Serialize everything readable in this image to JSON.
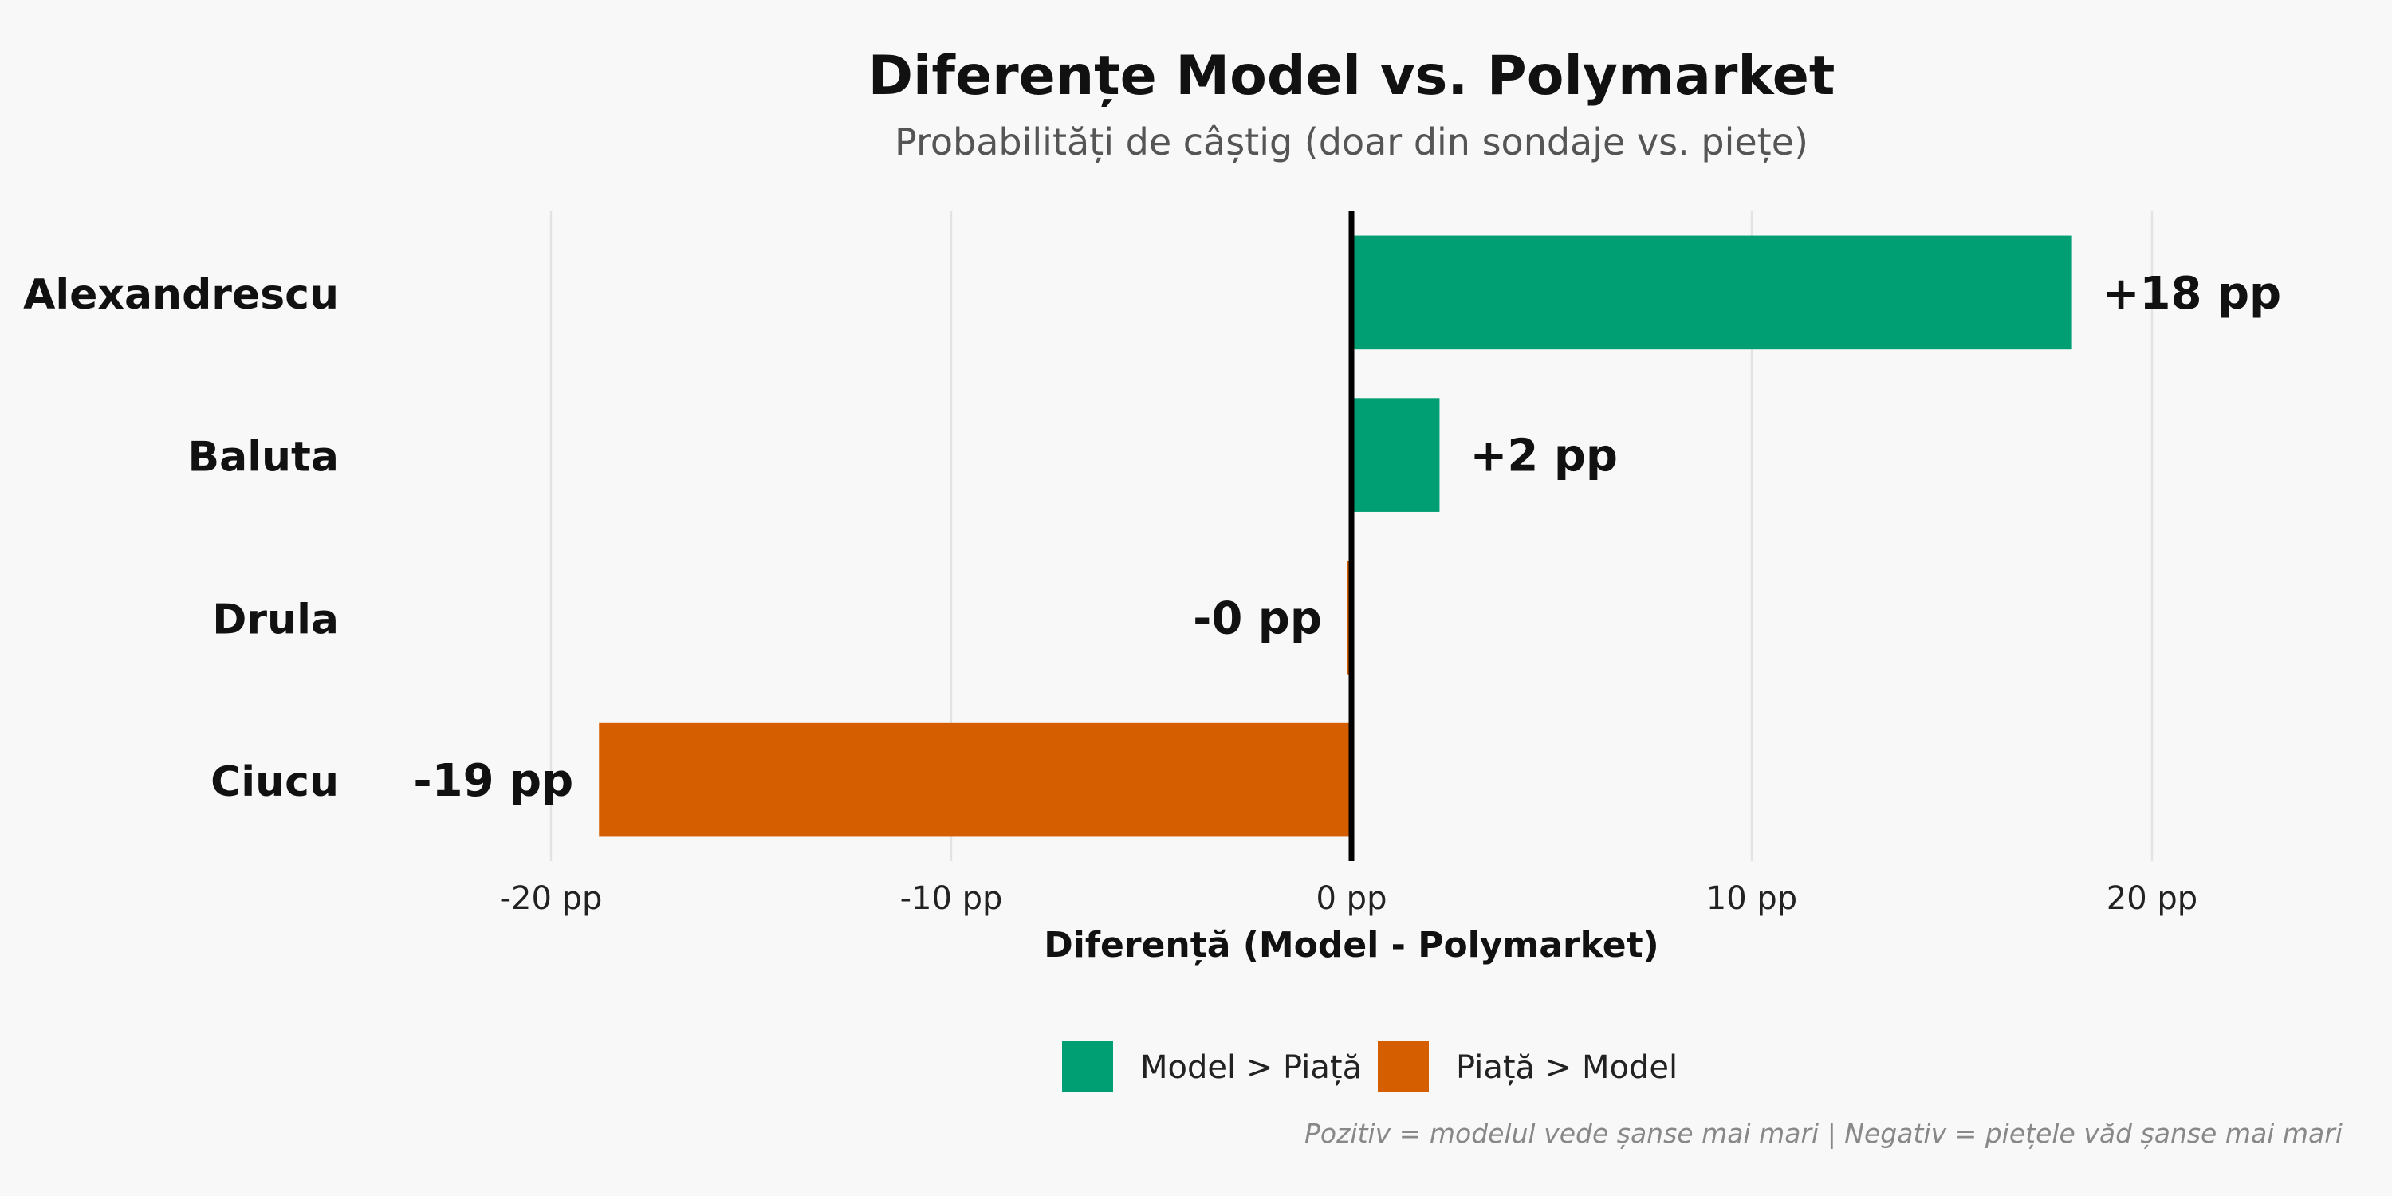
{
  "chart_data": {
    "type": "bar",
    "orientation": "horizontal",
    "title": "Diferențe Model vs. Polymarket",
    "subtitle": "Probabilități de câștig (doar din sondaje vs. piețe)",
    "xlabel": "Diferență (Model - Polymarket)",
    "ylabel": "",
    "categories": [
      "Alexandrescu",
      "Baluta",
      "Drula",
      "Ciucu"
    ],
    "values": [
      18.0,
      2.2,
      -0.1,
      -18.8
    ],
    "value_labels": [
      "+18 pp",
      "+2 pp",
      "-0 pp",
      "-19 pp"
    ],
    "xlim": [
      -25,
      25
    ],
    "xticks": [
      -20,
      -10,
      0,
      10,
      20
    ],
    "xtick_labels": [
      "-20 pp",
      "-10 pp",
      "0 pp",
      "10 pp",
      "20 pp"
    ],
    "grid": true,
    "legend": {
      "placement": "bottom-center",
      "items": [
        {
          "label": "Model > Piață",
          "color": "#009e73"
        },
        {
          "label": "Piață > Model",
          "color": "#d55e00"
        }
      ]
    },
    "colors": {
      "positive": "#009e73",
      "negative": "#d55e00",
      "zero_line": "#000000"
    },
    "caption": "Pozitiv = modelul vede șanse mai mari | Negativ = piețele văd șanse mai mari"
  }
}
